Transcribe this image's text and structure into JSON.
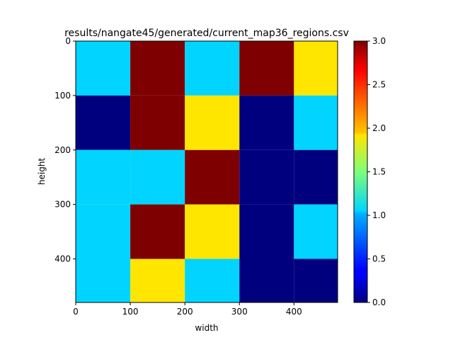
{
  "chart_data": {
    "type": "heatmap",
    "title": "results/nangate45/generated/current_map36_regions.csv",
    "xlabel": "width",
    "ylabel": "height",
    "x_edges": [
      0,
      100,
      200,
      300,
      400,
      480
    ],
    "y_edges": [
      0,
      100,
      200,
      300,
      400,
      480
    ],
    "xlim": [
      0,
      480
    ],
    "ylim": [
      480,
      0
    ],
    "x_ticks": [
      0,
      100,
      200,
      300,
      400
    ],
    "x_tick_labels": [
      "0",
      "100",
      "200",
      "300",
      "400"
    ],
    "y_ticks": [
      0,
      100,
      200,
      300,
      400
    ],
    "y_tick_labels": [
      "0",
      "100",
      "200",
      "300",
      "400"
    ],
    "values": [
      [
        1,
        3,
        1,
        3,
        2
      ],
      [
        0,
        3,
        2,
        0,
        1
      ],
      [
        1,
        1,
        3,
        0,
        0
      ],
      [
        1,
        3,
        2,
        0,
        1
      ],
      [
        1,
        2,
        1,
        0,
        0
      ]
    ],
    "colormap": "jet",
    "colorbar": {
      "min": 0.0,
      "max": 3.0,
      "ticks": [
        0.0,
        0.5,
        1.0,
        1.5,
        2.0,
        2.5,
        3.0
      ],
      "tick_labels": [
        "0.0",
        "0.5",
        "1.0",
        "1.5",
        "2.0",
        "2.5",
        "3.0"
      ]
    },
    "grid": false,
    "legend": false
  }
}
